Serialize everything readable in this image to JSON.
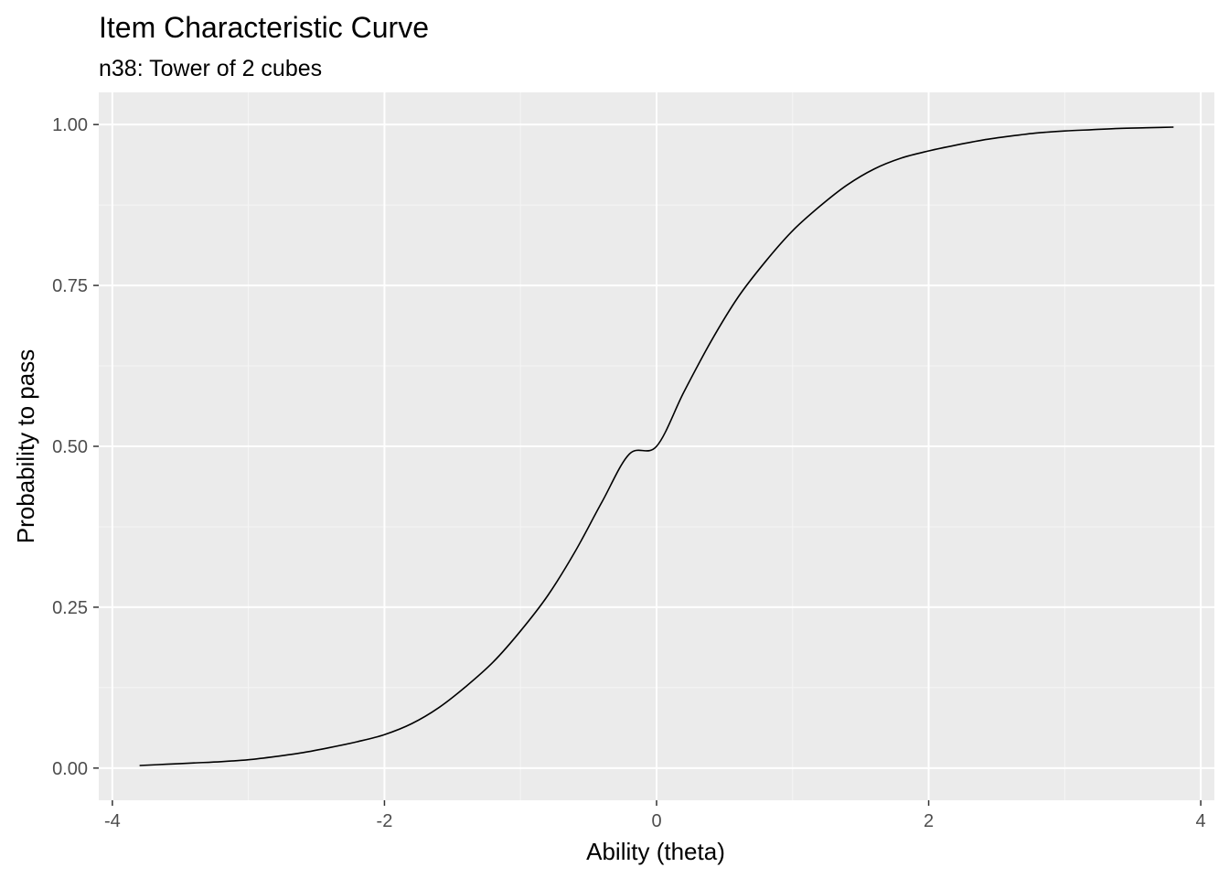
{
  "chart_data": {
    "type": "line",
    "title": "Item Characteristic Curve",
    "subtitle": "n38: Tower of 2 cubes",
    "xlabel": "Ability (theta)",
    "ylabel": "Probability to pass",
    "xlim": [
      -4.1,
      4.1
    ],
    "ylim": [
      -0.05,
      1.05
    ],
    "x_ticks": [
      {
        "value": -4,
        "label": "-4"
      },
      {
        "value": -2,
        "label": "-2"
      },
      {
        "value": 0,
        "label": "0"
      },
      {
        "value": 2,
        "label": "2"
      },
      {
        "value": 4,
        "label": "4"
      }
    ],
    "y_ticks": [
      {
        "value": 0.0,
        "label": "0.00"
      },
      {
        "value": 0.25,
        "label": "0.25"
      },
      {
        "value": 0.5,
        "label": "0.50"
      },
      {
        "value": 0.75,
        "label": "0.75"
      },
      {
        "value": 1.0,
        "label": "1.00"
      }
    ],
    "grid": true,
    "series": [
      {
        "x": [
          -3.8,
          -3.6,
          -3.4,
          -3.2,
          -3.0,
          -2.8,
          -2.6,
          -2.4,
          -2.2,
          -2.0,
          -1.8,
          -1.6,
          -1.4,
          -1.2,
          -1.0,
          -0.8,
          -0.6,
          -0.4,
          -0.2,
          0.0,
          0.2,
          0.4,
          0.6,
          0.8,
          1.0,
          1.2,
          1.4,
          1.6,
          1.8,
          2.0,
          2.2,
          2.4,
          2.6,
          2.8,
          3.0,
          3.2,
          3.4,
          3.6,
          3.8
        ],
        "y": [
          0.004,
          0.006,
          0.008,
          0.01,
          0.013,
          0.018,
          0.024,
          0.032,
          0.041,
          0.052,
          0.069,
          0.094,
          0.127,
          0.165,
          0.213,
          0.268,
          0.336,
          0.414,
          0.488,
          0.5,
          0.584,
          0.663,
          0.732,
          0.787,
          0.835,
          0.873,
          0.906,
          0.931,
          0.948,
          0.959,
          0.968,
          0.976,
          0.982,
          0.987,
          0.99,
          0.992,
          0.994,
          0.995,
          0.996
        ],
        "color": "#000000"
      }
    ],
    "colors": {
      "panel_background": "#ebebeb",
      "grid_major": "#ffffff",
      "grid_minor": "#f5f5f5",
      "line": "#000000"
    }
  }
}
